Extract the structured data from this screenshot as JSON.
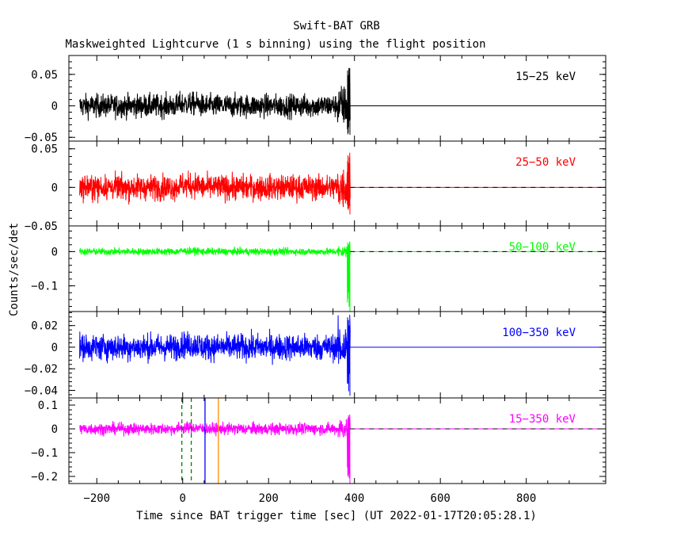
{
  "chart_data": {
    "type": "line",
    "title": "Swift-BAT GRB",
    "subtitle": "Maskweighted Lightcurve (1 s binning) using the flight position",
    "xlabel": "Time since BAT trigger time [sec] (UT 2022-01-17T20:05:28.1)",
    "ylabel": "Counts/sec/det",
    "xlim": [
      -265,
      985
    ],
    "x_ticks": [
      -200,
      0,
      200,
      400,
      600,
      800
    ],
    "x_tick_labels": [
      "−200",
      "0",
      "200",
      "400",
      "600",
      "800"
    ],
    "grid": false,
    "panels": [
      {
        "band": "15−25 keV",
        "color": "#000000",
        "ylim": [
          -0.056,
          0.08
        ],
        "y_ticks": [
          -0.05,
          0,
          0.05
        ],
        "y_tick_labels": [
          "−0.05",
          "0",
          "0.05"
        ],
        "noise_amplitude": 0.009,
        "tail_peak": 0.06,
        "tail_dip": -0.046,
        "baseline": 0
      },
      {
        "band": "25−50 keV",
        "color": "#ff0000",
        "ylim": [
          -0.05,
          0.06
        ],
        "y_ticks": [
          -0.05,
          0,
          0.05
        ],
        "y_tick_labels": [
          "−0.05",
          "0",
          "0.05"
        ],
        "noise_amplitude": 0.008,
        "tail_peak": 0.045,
        "tail_dip": -0.035,
        "baseline": 0
      },
      {
        "band": "50−100 keV",
        "color": "#00ff00",
        "ylim": [
          -0.175,
          0.075
        ],
        "y_ticks": [
          -0.1,
          0
        ],
        "y_tick_labels": [
          "−0.1",
          "0"
        ],
        "noise_amplitude": 0.005,
        "tail_peak": 0.03,
        "tail_dip": -0.175,
        "baseline": 0
      },
      {
        "band": "100−350 keV",
        "color": "#0000ff",
        "ylim": [
          -0.047,
          0.033
        ],
        "y_ticks": [
          -0.04,
          -0.02,
          0,
          0.02
        ],
        "y_tick_labels": [
          "−0.04",
          "−0.02",
          "0",
          "0.02"
        ],
        "noise_amplitude": 0.006,
        "tail_peak": 0.03,
        "tail_dip": -0.045,
        "baseline": 0
      },
      {
        "band": "15−350 keV",
        "color": "#ff00ff",
        "ylim": [
          -0.23,
          0.13
        ],
        "y_ticks": [
          -0.2,
          -0.1,
          0,
          0.1
        ],
        "y_tick_labels": [
          "−0.2",
          "−0.1",
          "0",
          "0.1"
        ],
        "noise_amplitude": 0.012,
        "tail_peak": 0.06,
        "tail_dip": -0.23,
        "baseline": 0
      }
    ],
    "data_range": {
      "start": -240,
      "end": 390,
      "baseline_end": 975
    },
    "markers": [
      {
        "x": -2,
        "color": "#008000",
        "style": "dashed"
      },
      {
        "x": 20,
        "color": "#008000",
        "style": "dashed"
      },
      {
        "x": 52,
        "color": "#0000ff",
        "style": "solid"
      },
      {
        "x": 83,
        "color": "#ff8c00",
        "style": "solid"
      }
    ]
  }
}
